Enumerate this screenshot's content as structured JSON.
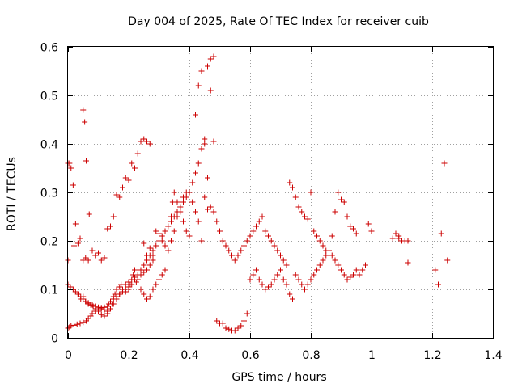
{
  "chart_data": {
    "type": "scatter",
    "title": "Day 004 of 2025, Rate Of TEC Index for receiver cuib",
    "xlabel": "GPS time / hours",
    "ylabel": "ROTI / TECUs",
    "xlim": [
      0,
      1.4
    ],
    "ylim": [
      0,
      0.6
    ],
    "xticks": [
      0,
      0.2,
      0.4,
      0.6,
      0.8,
      1,
      1.2,
      1.4
    ],
    "xtick_labels": [
      "0",
      "0.2",
      "0.4",
      "0.6",
      "0.8",
      "1",
      "1.2",
      "1.4"
    ],
    "yticks": [
      0,
      0.1,
      0.2,
      0.3,
      0.4,
      0.5,
      0.6
    ],
    "ytick_labels": [
      "0",
      "0.1",
      "0.2",
      "0.3",
      "0.4",
      "0.5",
      "0.6"
    ],
    "grid": true,
    "marker": "+",
    "marker_color": "#cc0000",
    "series": [
      {
        "name": "ROTI",
        "x": [
          0.0,
          0.005,
          0.01,
          0.017,
          0.025,
          0.033,
          0.04,
          0.05,
          0.055,
          0.06,
          0.07,
          0.08,
          0.09,
          0.1,
          0.11,
          0.12,
          0.13,
          0.14,
          0.15,
          0.16,
          0.17,
          0.18,
          0.19,
          0.2,
          0.21,
          0.22,
          0.23,
          0.24,
          0.25,
          0.26,
          0.27,
          0.0,
          0.008,
          0.017,
          0.025,
          0.033,
          0.042,
          0.05,
          0.058,
          0.067,
          0.075,
          0.083,
          0.092,
          0.1,
          0.11,
          0.12,
          0.13,
          0.14,
          0.15,
          0.16,
          0.17,
          0.18,
          0.19,
          0.2,
          0.21,
          0.22,
          0.23,
          0.24,
          0.25,
          0.26,
          0.27,
          0.28,
          0.0,
          0.005,
          0.01,
          0.02,
          0.03,
          0.04,
          0.05,
          0.06,
          0.067,
          0.075,
          0.08,
          0.09,
          0.1,
          0.11,
          0.12,
          0.13,
          0.135,
          0.14,
          0.15,
          0.16,
          0.17,
          0.18,
          0.19,
          0.2,
          0.21,
          0.22,
          0.23,
          0.24,
          0.25,
          0.26,
          0.27,
          0.28,
          0.29,
          0.3,
          0.31,
          0.32,
          0.33,
          0.34,
          0.35,
          0.36,
          0.37,
          0.38,
          0.39,
          0.4,
          0.41,
          0.42,
          0.43,
          0.44,
          0.45,
          0.46,
          0.47,
          0.48,
          0.0,
          0.02,
          0.033,
          0.042,
          0.05,
          0.058,
          0.067,
          0.08,
          0.09,
          0.1,
          0.11,
          0.12,
          0.13,
          0.14,
          0.145,
          0.15,
          0.155,
          0.16,
          0.17,
          0.175,
          0.18,
          0.19,
          0.2,
          0.205,
          0.215,
          0.22,
          0.225,
          0.24,
          0.25,
          0.26,
          0.27,
          0.28,
          0.29,
          0.3,
          0.31,
          0.32,
          0.33,
          0.34,
          0.345,
          0.35,
          0.36,
          0.37,
          0.38,
          0.39,
          0.4,
          0.41,
          0.42,
          0.43,
          0.44,
          0.45,
          0.46,
          0.47,
          0.48,
          0.49,
          0.5,
          0.51,
          0.52,
          0.53,
          0.54,
          0.55,
          0.56,
          0.57,
          0.58,
          0.59,
          0.6,
          0.61,
          0.62,
          0.63,
          0.64,
          0.65,
          0.66,
          0.67,
          0.68,
          0.69,
          0.7,
          0.71,
          0.72,
          0.73,
          0.74,
          0.75,
          0.76,
          0.77,
          0.78,
          0.79,
          0.8,
          0.81,
          0.82,
          0.83,
          0.84,
          0.85,
          0.86,
          0.87,
          0.88,
          0.89,
          0.9,
          0.91,
          0.92,
          0.93,
          0.94,
          0.95,
          0.96,
          0.97,
          0.98,
          0.99,
          1.0,
          1.07,
          1.08,
          1.09,
          1.1,
          1.12,
          1.21,
          1.22,
          1.23,
          1.24,
          1.25,
          0.05,
          0.058,
          0.067,
          0.25,
          0.26,
          0.27,
          0.28,
          0.29,
          0.3,
          0.31,
          0.32,
          0.33,
          0.34,
          0.35,
          0.36,
          0.37,
          0.38,
          0.39,
          0.41,
          0.42,
          0.43,
          0.44,
          0.45,
          0.46,
          0.47,
          0.48,
          0.49,
          0.5,
          0.51,
          0.52,
          0.53,
          0.54,
          0.55,
          0.56,
          0.57,
          0.58,
          0.59,
          0.6,
          0.61,
          0.62,
          0.63,
          0.64,
          0.65,
          0.66,
          0.67,
          0.68,
          0.69,
          0.7,
          0.71,
          0.72,
          0.73,
          0.74,
          0.75,
          0.76,
          0.77,
          0.78,
          0.79,
          0.8,
          0.81,
          0.82,
          0.83,
          0.84,
          0.85,
          0.86,
          0.87,
          0.88,
          0.89,
          0.9,
          0.91,
          0.92,
          0.93,
          0.94,
          0.95,
          1.09,
          1.1,
          1.11,
          1.12
        ],
        "y": [
          0.16,
          0.36,
          0.35,
          0.315,
          0.235,
          0.195,
          0.205,
          0.47,
          0.445,
          0.365,
          0.255,
          0.18,
          0.17,
          0.175,
          0.16,
          0.165,
          0.225,
          0.23,
          0.25,
          0.295,
          0.29,
          0.31,
          0.33,
          0.325,
          0.36,
          0.35,
          0.38,
          0.405,
          0.41,
          0.405,
          0.4,
          0.11,
          0.105,
          0.1,
          0.095,
          0.09,
          0.085,
          0.08,
          0.075,
          0.072,
          0.068,
          0.065,
          0.06,
          0.055,
          0.048,
          0.045,
          0.05,
          0.06,
          0.07,
          0.08,
          0.09,
          0.1,
          0.11,
          0.115,
          0.12,
          0.125,
          0.12,
          0.13,
          0.135,
          0.14,
          0.15,
          0.16,
          0.02,
          0.022,
          0.025,
          0.026,
          0.028,
          0.03,
          0.032,
          0.035,
          0.04,
          0.045,
          0.05,
          0.055,
          0.06,
          0.062,
          0.063,
          0.065,
          0.07,
          0.075,
          0.08,
          0.085,
          0.09,
          0.095,
          0.1,
          0.105,
          0.11,
          0.12,
          0.13,
          0.14,
          0.15,
          0.16,
          0.17,
          0.18,
          0.19,
          0.2,
          0.21,
          0.22,
          0.23,
          0.24,
          0.25,
          0.26,
          0.27,
          0.28,
          0.29,
          0.3,
          0.32,
          0.34,
          0.36,
          0.39,
          0.41,
          0.56,
          0.575,
          0.58,
          0.36,
          0.19,
          0.09,
          0.08,
          0.085,
          0.075,
          0.07,
          0.068,
          0.065,
          0.063,
          0.06,
          0.058,
          0.055,
          0.06,
          0.07,
          0.085,
          0.09,
          0.1,
          0.105,
          0.11,
          0.1,
          0.095,
          0.1,
          0.11,
          0.13,
          0.14,
          0.115,
          0.1,
          0.09,
          0.08,
          0.085,
          0.1,
          0.11,
          0.12,
          0.13,
          0.14,
          0.18,
          0.25,
          0.28,
          0.3,
          0.28,
          0.26,
          0.24,
          0.22,
          0.21,
          0.28,
          0.46,
          0.52,
          0.55,
          0.4,
          0.265,
          0.51,
          0.405,
          0.035,
          0.03,
          0.03,
          0.02,
          0.018,
          0.015,
          0.015,
          0.02,
          0.025,
          0.035,
          0.05,
          0.12,
          0.13,
          0.14,
          0.12,
          0.11,
          0.1,
          0.105,
          0.11,
          0.12,
          0.13,
          0.14,
          0.12,
          0.11,
          0.09,
          0.08,
          0.13,
          0.12,
          0.11,
          0.1,
          0.11,
          0.12,
          0.13,
          0.14,
          0.15,
          0.16,
          0.17,
          0.18,
          0.17,
          0.16,
          0.15,
          0.14,
          0.13,
          0.12,
          0.125,
          0.13,
          0.14,
          0.13,
          0.14,
          0.15,
          0.235,
          0.22,
          0.205,
          0.215,
          0.205,
          0.2,
          0.155,
          0.14,
          0.11,
          0.215,
          0.36,
          0.16,
          0.16,
          0.165,
          0.16,
          0.195,
          0.17,
          0.185,
          0.17,
          0.22,
          0.215,
          0.2,
          0.19,
          0.18,
          0.2,
          0.22,
          0.25,
          0.27,
          0.29,
          0.3,
          0.28,
          0.26,
          0.24,
          0.2,
          0.29,
          0.33,
          0.27,
          0.26,
          0.24,
          0.22,
          0.2,
          0.19,
          0.18,
          0.17,
          0.16,
          0.17,
          0.18,
          0.19,
          0.2,
          0.21,
          0.22,
          0.23,
          0.24,
          0.25,
          0.22,
          0.21,
          0.2,
          0.19,
          0.18,
          0.17,
          0.16,
          0.15,
          0.32,
          0.31,
          0.29,
          0.27,
          0.26,
          0.25,
          0.245,
          0.3,
          0.22,
          0.21,
          0.2,
          0.19,
          0.18,
          0.17,
          0.21,
          0.26,
          0.3,
          0.285,
          0.28,
          0.25,
          0.23,
          0.225,
          0.215,
          0.21,
          0.2,
          0.2,
          0.2
        ]
      }
    ]
  }
}
